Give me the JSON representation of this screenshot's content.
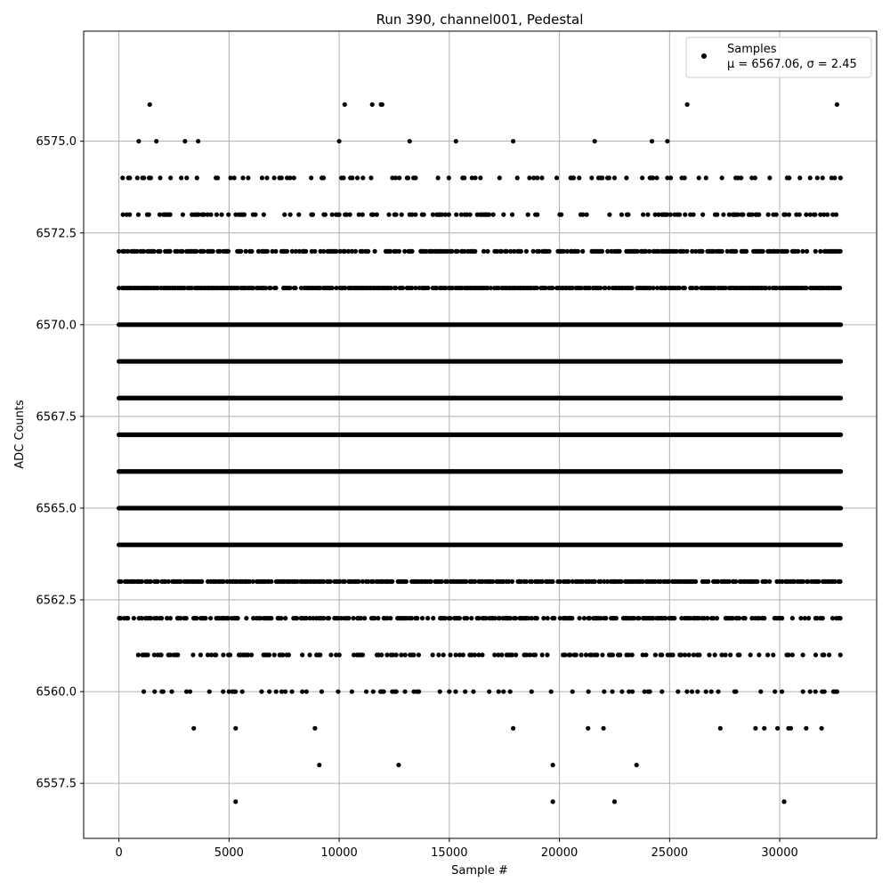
{
  "chart_data": {
    "type": "scatter",
    "title": "Run 390, channel001, Pedestal",
    "xlabel": "Sample #",
    "ylabel": "ADC Counts",
    "xlim": [
      -1600,
      34400
    ],
    "ylim": [
      6556,
      6578
    ],
    "xticks": [
      0,
      5000,
      10000,
      15000,
      20000,
      25000,
      30000
    ],
    "xtick_labels": [
      "0",
      "5000",
      "10000",
      "15000",
      "20000",
      "25000",
      "30000"
    ],
    "yticks": [
      6557.5,
      6560.0,
      6562.5,
      6565.0,
      6567.5,
      6570.0,
      6572.5,
      6575.0
    ],
    "ytick_labels": [
      "6557.5",
      "6560.0",
      "6562.5",
      "6565.0",
      "6567.5",
      "6570.0",
      "6572.5",
      "6575.0"
    ],
    "grid": true,
    "legend_position": "top-right",
    "series": [
      {
        "name": "Samples",
        "stats_label": "μ = 6567.06, σ = 2.45",
        "color": "#000000",
        "marker": "circle",
        "x_range": [
          0,
          32767
        ],
        "levels": [
          {
            "y": 6576,
            "x": [
              1400,
              10250,
              11500,
              11900,
              11950,
              25800,
              32600
            ]
          },
          {
            "y": 6575,
            "x": [
              900,
              1700,
              3000,
              3600,
              10000,
              13200,
              15300,
              17900,
              21600,
              24200,
              24900
            ]
          },
          {
            "y": 6574,
            "density": 0.22
          },
          {
            "y": 6573,
            "density": 0.35
          },
          {
            "y": 6572,
            "density": 0.62
          },
          {
            "y": 6571,
            "density": 0.85
          },
          {
            "y": 6570,
            "density": 1.0
          },
          {
            "y": 6569,
            "density": 1.0
          },
          {
            "y": 6568,
            "density": 1.0
          },
          {
            "y": 6567,
            "density": 1.0
          },
          {
            "y": 6566,
            "density": 1.0
          },
          {
            "y": 6565,
            "density": 1.0
          },
          {
            "y": 6564,
            "density": 1.0
          },
          {
            "y": 6563,
            "density": 0.8
          },
          {
            "y": 6562,
            "density": 0.6
          },
          {
            "y": 6561,
            "density": 0.33
          },
          {
            "y": 6560,
            "density": 0.17
          },
          {
            "y": 6559,
            "x": [
              3400,
              5300,
              8900,
              17900,
              21300,
              22000,
              27300,
              28900,
              29300,
              29900,
              30400,
              30500,
              31200,
              31900
            ]
          },
          {
            "y": 6558,
            "x": [
              9100,
              12700,
              19700,
              23500
            ]
          },
          {
            "y": 6557,
            "x": [
              5300,
              19700,
              22500,
              30200
            ]
          }
        ]
      }
    ]
  }
}
